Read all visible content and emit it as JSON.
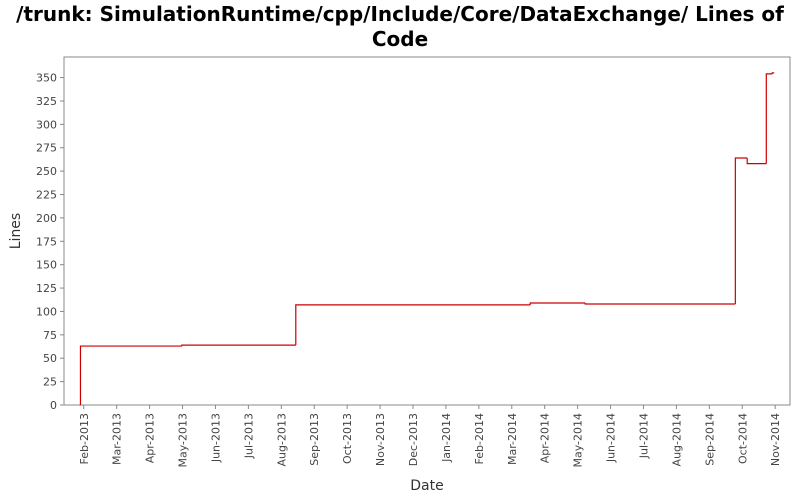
{
  "chart_data": {
    "type": "step-line",
    "title": "/trunk: SimulationRuntime/cpp/Include/Core/DataExchange/ Lines of Code",
    "x_label": "Date",
    "y_label": "Lines",
    "xlim": [
      0.4,
      22.45
    ],
    "ylim": [
      0,
      372
    ],
    "xticks": [
      {
        "value": 1,
        "label": "Feb-2013"
      },
      {
        "value": 2,
        "label": "Mar-2013"
      },
      {
        "value": 3,
        "label": "Apr-2013"
      },
      {
        "value": 4,
        "label": "May-2013"
      },
      {
        "value": 5,
        "label": "Jun-2013"
      },
      {
        "value": 6,
        "label": "Jul-2013"
      },
      {
        "value": 7,
        "label": "Aug-2013"
      },
      {
        "value": 8,
        "label": "Sep-2013"
      },
      {
        "value": 9,
        "label": "Oct-2013"
      },
      {
        "value": 10,
        "label": "Nov-2013"
      },
      {
        "value": 11,
        "label": "Dec-2013"
      },
      {
        "value": 12,
        "label": "Jan-2014"
      },
      {
        "value": 13,
        "label": "Feb-2014"
      },
      {
        "value": 14,
        "label": "Mar-2014"
      },
      {
        "value": 15,
        "label": "Apr-2014"
      },
      {
        "value": 16,
        "label": "May-2014"
      },
      {
        "value": 17,
        "label": "Jun-2014"
      },
      {
        "value": 18,
        "label": "Jul-2014"
      },
      {
        "value": 19,
        "label": "Aug-2014"
      },
      {
        "value": 20,
        "label": "Sep-2014"
      },
      {
        "value": 21,
        "label": "Oct-2014"
      },
      {
        "value": 22,
        "label": "Nov-2014"
      }
    ],
    "yticks": [
      0,
      25,
      50,
      75,
      100,
      125,
      150,
      175,
      200,
      225,
      250,
      275,
      300,
      325,
      350
    ],
    "series": [
      {
        "color": "#cc0000",
        "x": [
          0.88,
          0.9,
          3.98,
          7.44,
          14.56,
          16.23,
          20.79,
          21.15,
          21.73,
          21.91,
          21.97
        ],
        "values": [
          0,
          63,
          64,
          107,
          109,
          108,
          264,
          258,
          354,
          355,
          355
        ]
      }
    ]
  }
}
